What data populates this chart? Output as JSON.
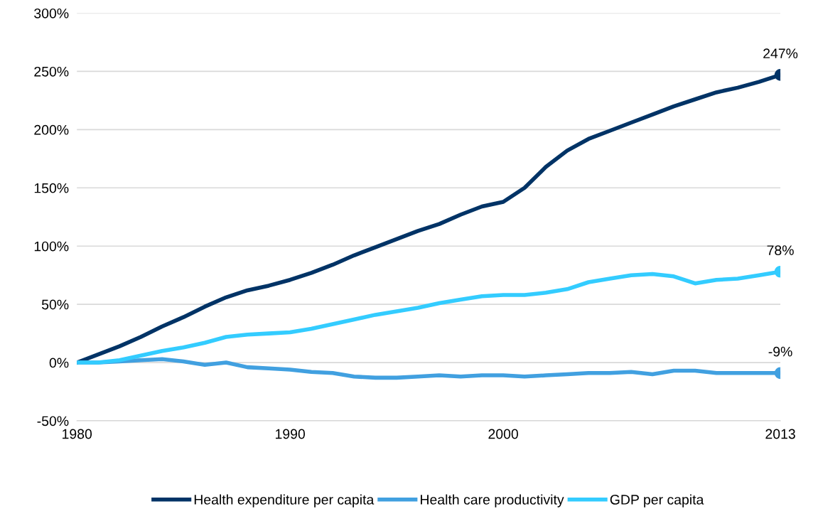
{
  "chart_data": {
    "type": "line",
    "x": [
      1980,
      1981,
      1982,
      1983,
      1984,
      1985,
      1986,
      1987,
      1988,
      1989,
      1990,
      1991,
      1992,
      1993,
      1994,
      1995,
      1996,
      1997,
      1998,
      1999,
      2000,
      2001,
      2002,
      2003,
      2004,
      2005,
      2006,
      2007,
      2008,
      2009,
      2010,
      2011,
      2012,
      2013
    ],
    "series": [
      {
        "name": "Health expenditure per capita",
        "color": "#003366",
        "values": [
          0,
          7,
          14,
          22,
          31,
          39,
          48,
          56,
          62,
          66,
          71,
          77,
          84,
          92,
          99,
          106,
          113,
          119,
          127,
          134,
          138,
          150,
          168,
          182,
          192,
          199,
          206,
          213,
          220,
          226,
          232,
          236,
          241,
          247
        ],
        "value_labels": [
          null,
          null,
          null,
          null,
          null,
          null,
          null,
          null,
          null,
          null,
          null,
          null,
          null,
          null,
          null,
          null,
          null,
          null,
          null,
          null,
          null,
          null,
          null,
          null,
          null,
          null,
          null,
          null,
          null,
          null,
          null,
          null,
          null,
          "247%"
        ]
      },
      {
        "name": "Health care productivity",
        "color": "#41a0e0",
        "values": [
          0,
          0,
          1,
          2,
          3,
          1,
          -2,
          0,
          -4,
          -5,
          -6,
          -8,
          -9,
          -12,
          -13,
          -13,
          -12,
          -11,
          -12,
          -11,
          -11,
          -12,
          -11,
          -10,
          -9,
          -9,
          -8,
          -10,
          -7,
          -7,
          -9,
          -9,
          -9,
          -9
        ],
        "value_labels": [
          null,
          null,
          null,
          null,
          null,
          null,
          null,
          null,
          null,
          null,
          null,
          null,
          null,
          null,
          null,
          null,
          null,
          null,
          null,
          null,
          null,
          null,
          null,
          null,
          null,
          null,
          null,
          null,
          null,
          null,
          null,
          null,
          null,
          "-9%"
        ]
      },
      {
        "name": "GDP per capita",
        "color": "#33ccff",
        "values": [
          0,
          0,
          2,
          6,
          10,
          13,
          17,
          22,
          24,
          25,
          26,
          29,
          33,
          37,
          41,
          44,
          47,
          51,
          54,
          57,
          58,
          58,
          60,
          63,
          69,
          72,
          75,
          76,
          74,
          68,
          71,
          72,
          75,
          78
        ],
        "value_labels": [
          null,
          null,
          null,
          null,
          null,
          null,
          null,
          null,
          null,
          null,
          null,
          null,
          null,
          null,
          null,
          null,
          null,
          null,
          null,
          null,
          null,
          null,
          null,
          null,
          null,
          null,
          null,
          null,
          null,
          null,
          null,
          null,
          null,
          "78%"
        ]
      }
    ],
    "xlim": [
      1980,
      2013
    ],
    "xticks": [
      1980,
      1990,
      2000,
      2013
    ],
    "ylim": [
      -50,
      300
    ],
    "yticks": [
      {
        "value": -50,
        "label": "-50%"
      },
      {
        "value": 0,
        "label": "0%"
      },
      {
        "value": 50,
        "label": "50%"
      },
      {
        "value": 100,
        "label": "100%"
      },
      {
        "value": 150,
        "label": "150%"
      },
      {
        "value": 200,
        "label": "200%"
      },
      {
        "value": 250,
        "label": "250%"
      },
      {
        "value": 300,
        "label": "300%"
      }
    ],
    "grid": "y",
    "legend": "bottom"
  }
}
